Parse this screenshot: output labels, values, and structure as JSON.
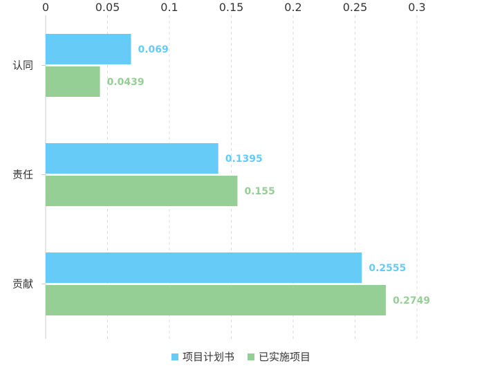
{
  "chart_data": {
    "type": "bar",
    "orientation": "horizontal",
    "categories": [
      "认同",
      "责任",
      "贡献"
    ],
    "series": [
      {
        "name": "项目计划书",
        "values": [
          0.069,
          0.1395,
          0.2555
        ],
        "labels": [
          "0.069",
          "0.1395",
          "0.2555"
        ],
        "color": "#66CCF7"
      },
      {
        "name": "已实施项目",
        "values": [
          0.0439,
          0.155,
          0.2749
        ],
        "labels": [
          "0.0439",
          "0.155",
          "0.2749"
        ],
        "color": "#95CF95"
      }
    ],
    "xlim": [
      0,
      0.3
    ],
    "x_ticks": [
      "0",
      "0.05",
      "0.1",
      "0.15",
      "0.2",
      "0.25",
      "0.3"
    ],
    "x_tick_values": [
      0,
      0.05,
      0.1,
      0.15,
      0.2,
      0.25,
      0.3
    ],
    "x_axis_position": "top",
    "grid": true,
    "legend_position": "bottom-center",
    "title": "",
    "xlabel": "",
    "ylabel": ""
  }
}
